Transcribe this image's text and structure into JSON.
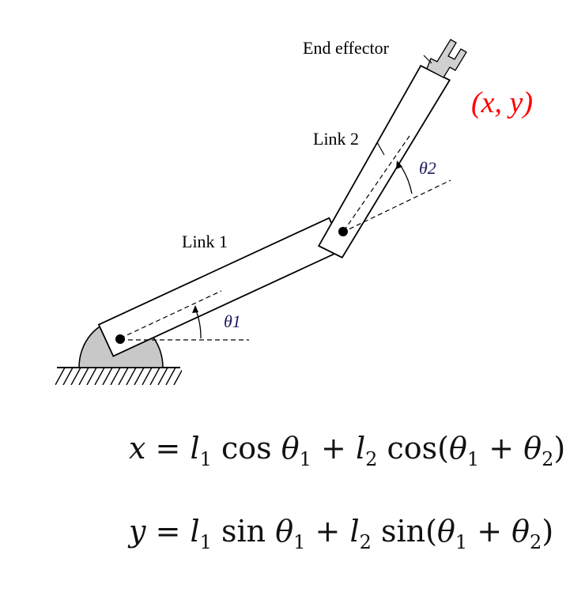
{
  "diagram": {
    "labels": {
      "end_effector": "End effector",
      "link2": "Link 2",
      "link1": "Link 1",
      "theta1": "θ1",
      "theta2": "θ2",
      "xy": "(x, y)"
    },
    "colors": {
      "xy_label": "#ff0000",
      "ink": "#000000",
      "base_fill": "#c8c8c8",
      "gripper_fill": "#d0d0d0",
      "theta_label": "#1a1a5e"
    }
  },
  "equations": {
    "x": {
      "lhs": "x",
      "eq": "=",
      "t1_l": "l",
      "t1_l_sub": "1",
      "t1_fn": "cos",
      "t1_th": "θ",
      "t1_th_sub": "1",
      "plus": "+",
      "t2_l": "l",
      "t2_l_sub": "2",
      "t2_fn": "cos(",
      "t2_th1": "θ",
      "t2_th1_sub": "1",
      "t2_plus": "+",
      "t2_th2": "θ",
      "t2_th2_sub": "2",
      "close": ")"
    },
    "y": {
      "lhs": "y",
      "eq": "=",
      "t1_l": "l",
      "t1_l_sub": "1",
      "t1_fn": "sin",
      "t1_th": "θ",
      "t1_th_sub": "1",
      "plus": "+",
      "t2_l": "l",
      "t2_l_sub": "2",
      "t2_fn": "sin(",
      "t2_th1": "θ",
      "t2_th1_sub": "1",
      "t2_plus": "+",
      "t2_th2": "θ",
      "t2_th2_sub": "2",
      "close": ")"
    }
  }
}
